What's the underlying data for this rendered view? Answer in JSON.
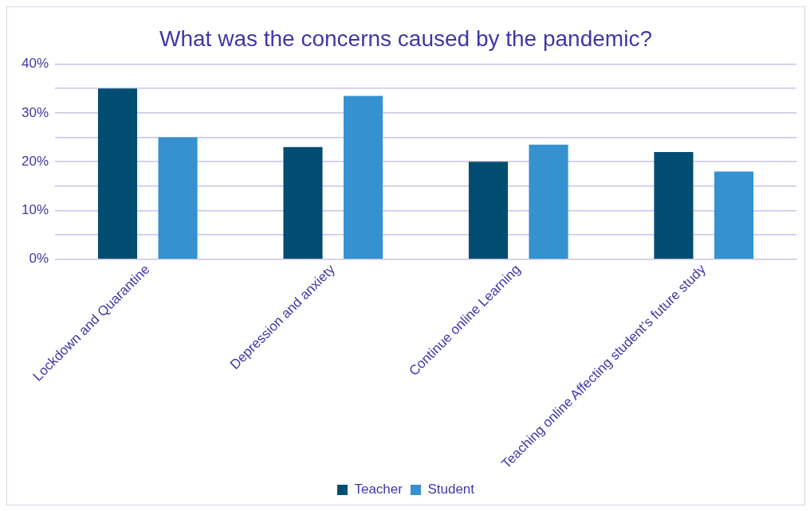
{
  "chart_data": {
    "type": "bar",
    "title": "What was the concerns caused by the pandemic?",
    "categories": [
      "Lockdown and Quarantine",
      "Depression and anxiety",
      "Continue online Learning",
      "Teaching online Affecting student’s future study"
    ],
    "series": [
      {
        "name": "Teacher",
        "color": "#004d71",
        "values": [
          35,
          23,
          20,
          22
        ]
      },
      {
        "name": "Student",
        "color": "#3591d0",
        "values": [
          25,
          33.5,
          23.5,
          18
        ]
      }
    ],
    "ylim": [
      0,
      40
    ],
    "yticks": [
      {
        "value": 0,
        "label": "0%"
      },
      {
        "value": 5,
        "label": null
      },
      {
        "value": 10,
        "label": "10%"
      },
      {
        "value": 15,
        "label": null
      },
      {
        "value": 20,
        "label": "20%"
      },
      {
        "value": 25,
        "label": null
      },
      {
        "value": 30,
        "label": "30%"
      },
      {
        "value": 35,
        "label": null
      },
      {
        "value": 40,
        "label": "40%"
      }
    ],
    "grid": "y",
    "legend": "bottom"
  }
}
